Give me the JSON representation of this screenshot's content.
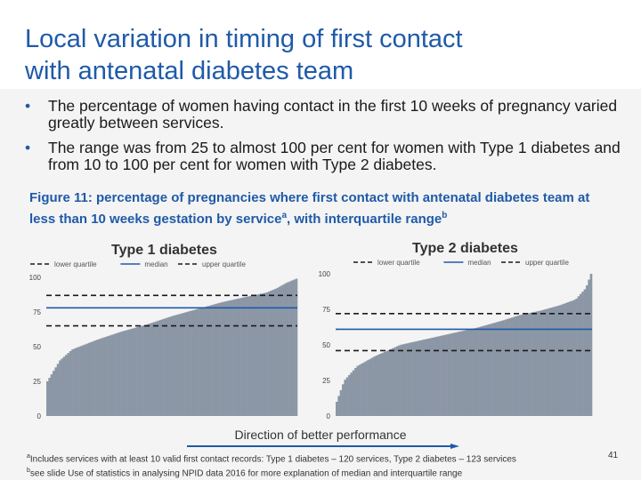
{
  "slide": {
    "title_line1": "Local variation in timing of first contact",
    "title_line2": "with antenatal diabetes team",
    "bullets": [
      "The percentage of women having contact in the first 10 weeks of pregnancy varied greatly between services.",
      "The range was from 25 to almost 100 per cent for women with Type 1 diabetes and from 10 to 100 per cent for women with Type 2 diabetes."
    ],
    "figure_caption": "Figure 11: percentage of pregnancies where first contact with antenatal diabetes team at less than 10 weeks gestation by service",
    "caption_sup_a": "a",
    "caption_tail": ", with interquartile range",
    "caption_sup_b": "b",
    "direction_text": "Direction of better performance",
    "footnote_a_marker": "a",
    "footnote_a": "Includes services with at least 10 valid first contact records: Type 1 diabetes – 120 services, Type 2 diabetes – 123 services",
    "footnote_b_marker": "b",
    "footnote_b": "see slide Use of statistics in analysing NPID data 2016 for more explanation of median and interquartile range",
    "page_number": "41"
  },
  "colors": {
    "title": "#1f5aa8",
    "bar_fill": "#8c97a6",
    "median_line": "#1f5aa8",
    "quartile_line": "#1a1a1a",
    "arrow": "#1f5aa8"
  },
  "chart_data": [
    {
      "type": "area",
      "title": "Type 1 diabetes",
      "legend": [
        "lower quartile",
        "median",
        "upper quartile"
      ],
      "legend_placement": "top",
      "services": 120,
      "ylim": [
        0,
        100
      ],
      "yticks": [
        0,
        25,
        50,
        75,
        100
      ],
      "profile": [
        [
          0,
          25
        ],
        [
          0.05,
          40
        ],
        [
          0.1,
          48
        ],
        [
          0.2,
          55
        ],
        [
          0.3,
          61
        ],
        [
          0.4,
          66
        ],
        [
          0.5,
          72
        ],
        [
          0.6,
          77
        ],
        [
          0.7,
          82
        ],
        [
          0.8,
          86
        ],
        [
          0.88,
          89
        ],
        [
          0.92,
          92
        ],
        [
          0.96,
          96
        ],
        [
          1.0,
          99
        ]
      ],
      "lower_quartile": 65,
      "median": 78,
      "upper_quartile": 87
    },
    {
      "type": "area",
      "title": "Type 2 diabetes",
      "legend": [
        "lower quartile",
        "median",
        "upper quartile"
      ],
      "legend_placement": "top",
      "services": 123,
      "ylim": [
        0,
        100
      ],
      "yticks": [
        0,
        25,
        50,
        75,
        100
      ],
      "profile": [
        [
          0,
          10
        ],
        [
          0.03,
          25
        ],
        [
          0.08,
          35
        ],
        [
          0.15,
          42
        ],
        [
          0.25,
          50
        ],
        [
          0.35,
          54
        ],
        [
          0.45,
          58
        ],
        [
          0.55,
          62
        ],
        [
          0.65,
          67
        ],
        [
          0.72,
          71
        ],
        [
          0.8,
          74
        ],
        [
          0.88,
          78
        ],
        [
          0.94,
          82
        ],
        [
          0.98,
          90
        ],
        [
          1.0,
          100
        ]
      ],
      "lower_quartile": 46,
      "median": 61,
      "upper_quartile": 72
    }
  ]
}
